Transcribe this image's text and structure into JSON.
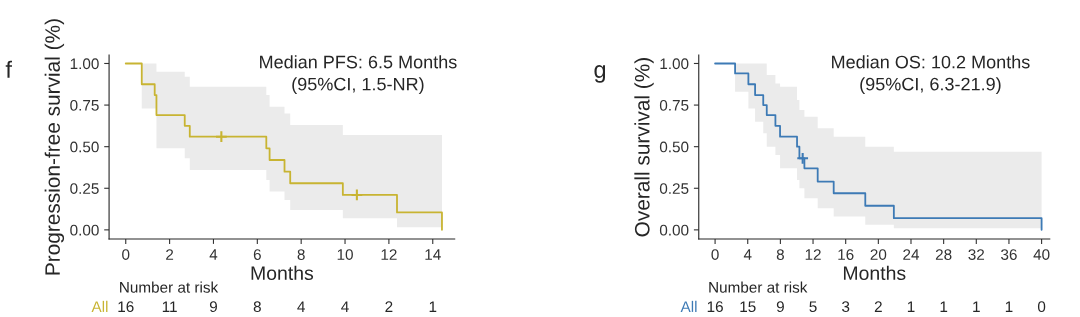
{
  "chart_data": [
    {
      "type": "step",
      "title": "f",
      "xlabel": "Months",
      "ylabel": "Progression-free survial (%)",
      "xlim": [
        -0.76,
        15
      ],
      "xticks": [
        0,
        2,
        4,
        6,
        8,
        10,
        12,
        14
      ],
      "ylim": [
        -0.055,
        1.05
      ],
      "yticks": [
        {
          "value": 0,
          "label": "0.00"
        },
        {
          "value": 0.25,
          "label": "0.25"
        },
        {
          "value": 0.5,
          "label": "0.50"
        },
        {
          "value": 0.75,
          "label": "0.75"
        },
        {
          "value": 1,
          "label": "1.00"
        }
      ],
      "grid": false,
      "legend": false,
      "series": [
        {
          "color": "#c8b432",
          "marker": "none",
          "x": [
            0,
            0.73,
            1.32,
            1.4,
            2.69,
            2.92,
            6.41,
            6.56,
            7.24,
            7.5,
            9.9,
            12.37,
            14.42
          ],
          "values": [
            1,
            0.875,
            0.81,
            0.69,
            0.625,
            0.56,
            0.49,
            0.42,
            0.35,
            0.28,
            0.21,
            0.105,
            0
          ],
          "lower": [
            1,
            0.73,
            0.73,
            0.49,
            0.43,
            0.36,
            0.3,
            0.23,
            0.18,
            0.12,
            0.07,
            0.015,
            0.015
          ],
          "upper": [
            1,
            1,
            1,
            0.95,
            0.92,
            0.86,
            0.81,
            0.74,
            0.7,
            0.63,
            0.57,
            0.57,
            0.57
          ]
        },
        {
          "type": "scatter",
          "color": "#c8b432",
          "marker": "cross",
          "x": [
            4.36,
            10.54
          ],
          "values": [
            0.56,
            0.21
          ]
        }
      ],
      "annotations": [
        "Median PFS: 6.5 Months\n(95%CI, 1.5-NR)",
        "Number at risk",
        "All",
        "16",
        "11",
        "9",
        "8",
        "4",
        "4",
        "2",
        "1"
      ]
    },
    {
      "type": "step",
      "title": "g",
      "xlabel": "Months",
      "ylabel": "Overall survival (%)",
      "xlim": [
        -2,
        41
      ],
      "xticks": [
        0,
        4,
        8,
        12,
        16,
        20,
        24,
        28,
        32,
        36,
        40
      ],
      "ylim": [
        -0.055,
        1.05
      ],
      "yticks": [
        {
          "value": 0,
          "label": "0.00"
        },
        {
          "value": 0.25,
          "label": "0.25"
        },
        {
          "value": 0.5,
          "label": "0.50"
        },
        {
          "value": 0.75,
          "label": "0.75"
        },
        {
          "value": 1,
          "label": "1.00"
        }
      ],
      "grid": false,
      "legend": false,
      "series": [
        {
          "color": "#3d7ab5",
          "marker": "none",
          "x": [
            0,
            2.45,
            4.08,
            4.9,
            5.9,
            6.33,
            7.39,
            7.96,
            10.04,
            10.33,
            10.94,
            12.57,
            14.53,
            18.4,
            21.9,
            40
          ],
          "values": [
            1,
            0.94,
            0.875,
            0.81,
            0.75,
            0.69,
            0.625,
            0.56,
            0.5,
            0.43,
            0.37,
            0.29,
            0.22,
            0.145,
            0.07,
            0
          ],
          "lower": [
            1,
            0.83,
            0.73,
            0.65,
            0.58,
            0.5,
            0.45,
            0.37,
            0.3,
            0.25,
            0.19,
            0.13,
            0.08,
            0.03,
            0.01,
            0.01
          ],
          "upper": [
            1,
            1,
            1,
            1,
            1,
            0.93,
            0.88,
            0.86,
            0.78,
            0.72,
            0.68,
            0.61,
            0.56,
            0.5,
            0.47,
            0.47
          ]
        },
        {
          "type": "scatter",
          "color": "#3d7ab5",
          "marker": "cross",
          "x": [
            10.73
          ],
          "values": [
            0.43
          ]
        }
      ],
      "annotations": [
        "Median OS: 10.2 Months\n(95%CI, 6.3-21.9)",
        "Number at risk",
        "All",
        "16",
        "15",
        "9",
        "5",
        "3",
        "2",
        "1",
        "1",
        "1",
        "1",
        "0"
      ]
    }
  ]
}
